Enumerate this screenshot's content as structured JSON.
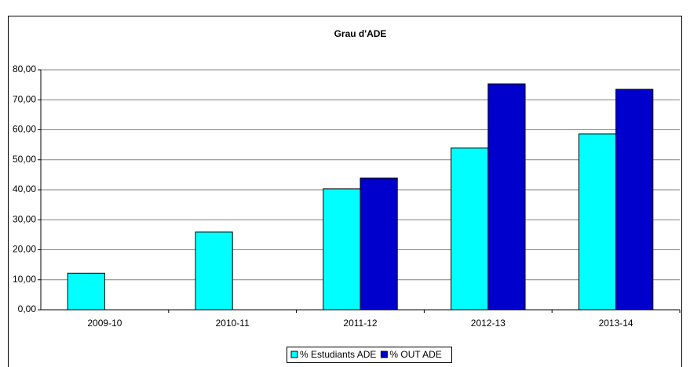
{
  "chart_data": {
    "type": "bar",
    "title": "Grau d'ADE",
    "categories": [
      "2009-10",
      "2010-11",
      "2011-12",
      "2012-13",
      "2013-14"
    ],
    "series": [
      {
        "name": "% Estudiants ADE",
        "color": "#00ffff",
        "values": [
          12.2,
          25.9,
          40.3,
          53.9,
          58.6
        ]
      },
      {
        "name": "% OUT ADE",
        "color": "#0000cc",
        "values": [
          null,
          null,
          43.9,
          75.3,
          73.5
        ]
      }
    ],
    "ylim": [
      0,
      80
    ],
    "yticks": [
      {
        "value": 0,
        "label": "0,00"
      },
      {
        "value": 10,
        "label": "10,00"
      },
      {
        "value": 20,
        "label": "20,00"
      },
      {
        "value": 30,
        "label": "30,00"
      },
      {
        "value": 40,
        "label": "40,00"
      },
      {
        "value": 50,
        "label": "50,00"
      },
      {
        "value": 60,
        "label": "60,00"
      },
      {
        "value": 70,
        "label": "70,00"
      },
      {
        "value": 80,
        "label": "80,00"
      }
    ],
    "grid": true,
    "legend": "bottom"
  }
}
